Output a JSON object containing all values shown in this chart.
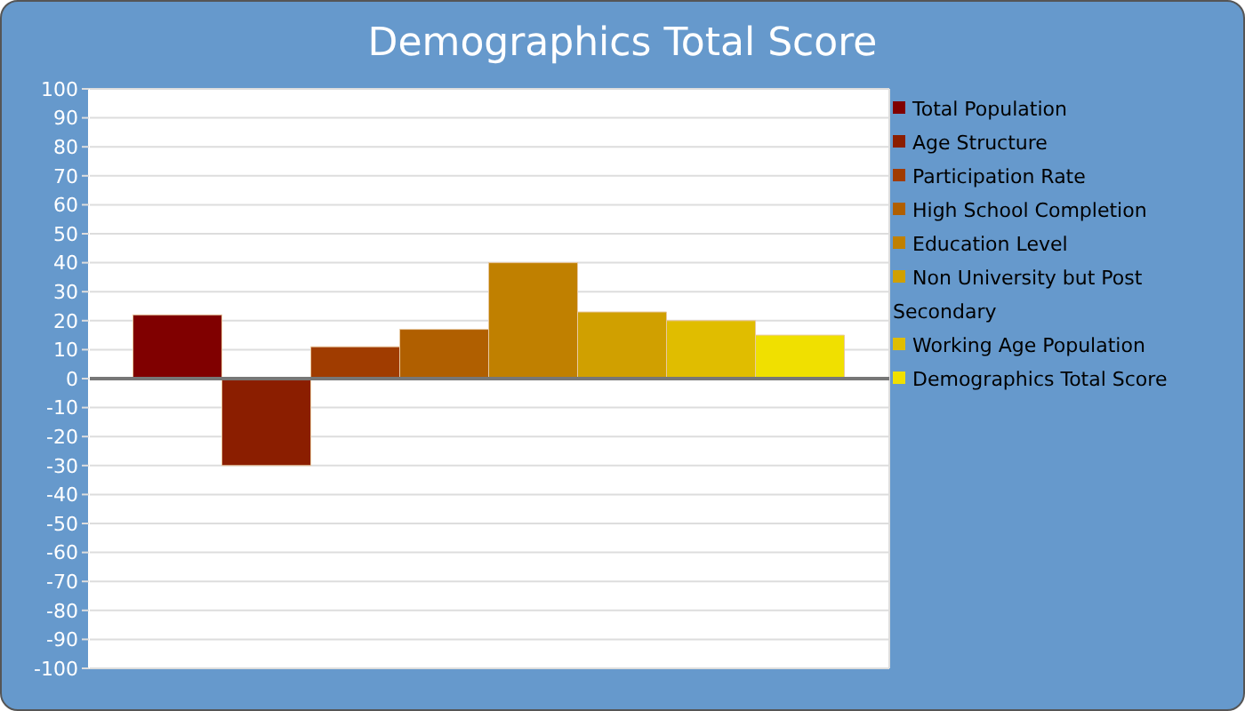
{
  "chart_data": {
    "type": "bar",
    "title": "Demographics Total Score",
    "categories": [
      null
    ],
    "series": [
      {
        "name": "Total Population",
        "color": "#800000",
        "values": [
          22
        ]
      },
      {
        "name": "Age Structure",
        "color": "#8b1e00",
        "values": [
          -30
        ]
      },
      {
        "name": "Participation Rate",
        "color": "#a03c00",
        "values": [
          11
        ]
      },
      {
        "name": "High School Completion",
        "color": "#b05f00",
        "values": [
          17
        ]
      },
      {
        "name": "Education Level",
        "color": "#c08000",
        "values": [
          40
        ]
      },
      {
        "name": "Non University but Post Secondary",
        "color": "#d0a000",
        "values": [
          23
        ]
      },
      {
        "name": "Working Age Population",
        "color": "#e0bd00",
        "values": [
          20
        ]
      },
      {
        "name": "Demographics Total Score",
        "color": "#f0e000",
        "values": [
          15
        ]
      }
    ],
    "ylim": [
      -100,
      100
    ],
    "yticks": [
      -100,
      -90,
      -80,
      -70,
      -60,
      -50,
      -40,
      -30,
      -20,
      -10,
      0,
      10,
      20,
      30,
      40,
      50,
      60,
      70,
      80,
      90,
      100
    ],
    "ref_lines": [
      {
        "axis": "y",
        "value": 0,
        "color": "#777777"
      }
    ],
    "grid": true,
    "legend": "right",
    "tick_labels": "y"
  }
}
